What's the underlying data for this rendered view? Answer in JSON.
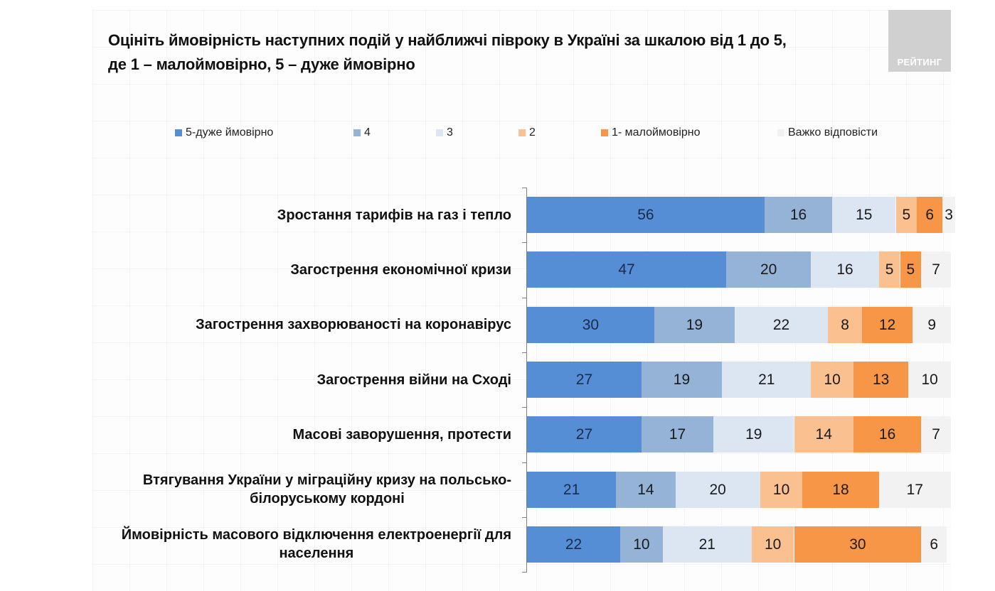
{
  "title": {
    "line1": "Оцініть ймовірність наступних подій у найближчі півроку в Україні за шкалою від 1 до 5,",
    "line2": "де 1 – малоймовірно, 5 – дуже ймовірно"
  },
  "logo": {
    "text": "РЕЙТИНГ"
  },
  "chart_data": {
    "type": "bar",
    "orientation": "horizontal",
    "stacked": true,
    "title": "Оцініть ймовірність наступних подій у найближчі півроку в Україні за шкалою від 1 до 5, де 1 – малоймовірно, 5 – дуже ймовірно",
    "xlabel": "",
    "ylabel": "",
    "xlim": [
      0,
      100
    ],
    "grid": false,
    "legend_position": "top",
    "categories": [
      "Зростання тарифів на газ і тепло",
      "Загострення економічної кризи",
      "Загострення захворюваності на коронавірус",
      "Загострення війни на Сході",
      "Масові заворушення, протести",
      "Втягування України у міграційну кризу на польсько-білоруському кордоні",
      "Ймовірність масового відключення електроенергії для населення"
    ],
    "category_label_lines": [
      [
        "Зростання тарифів на газ і тепло"
      ],
      [
        "Загострення економічної кризи"
      ],
      [
        "Загострення захворюваності на коронавірус"
      ],
      [
        "Загострення війни на Сході"
      ],
      [
        "Масові заворушення, протести"
      ],
      [
        "Втягування України у міграційну кризу на польсько-",
        "білоруському кордоні"
      ],
      [
        "Ймовірність масового відключення електроенергії для",
        "населення"
      ]
    ],
    "series": [
      {
        "name": "5-дуже ймовірно",
        "color": "#558ed5",
        "values": [
          56,
          47,
          30,
          27,
          27,
          21,
          22
        ]
      },
      {
        "name": "4",
        "color": "#95b3d7",
        "values": [
          16,
          20,
          19,
          19,
          17,
          14,
          10
        ]
      },
      {
        "name": "3",
        "color": "#dce6f2",
        "values": [
          15,
          16,
          22,
          21,
          19,
          20,
          21
        ]
      },
      {
        "name": "2",
        "color": "#fac090",
        "values": [
          5,
          5,
          8,
          10,
          14,
          10,
          10
        ]
      },
      {
        "name": "1- малоймовірно",
        "color": "#f79646",
        "values": [
          6,
          5,
          12,
          13,
          16,
          18,
          30
        ]
      },
      {
        "name": "Важко відповісти",
        "color": "#f2f2f2",
        "values": [
          3,
          7,
          9,
          10,
          7,
          17,
          6
        ]
      }
    ]
  }
}
